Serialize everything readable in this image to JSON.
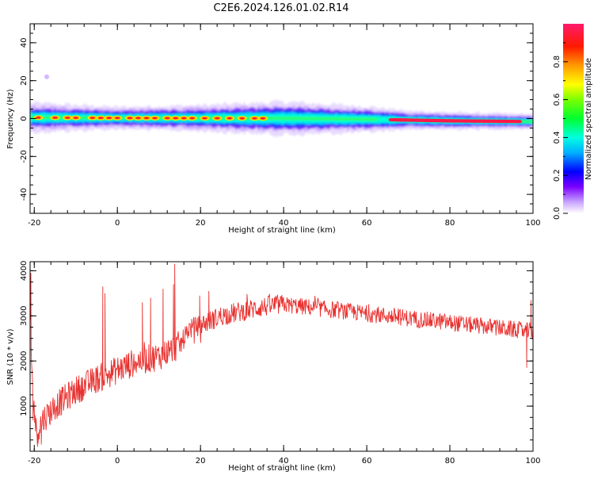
{
  "title": "C2E6.2024.126.01.02.R14",
  "colors": {
    "trace": "#e8312f",
    "axis": "#000000",
    "background": "#ffffff"
  },
  "chart_data": [
    {
      "type": "heatmap",
      "xlabel": "Height of straight line (km)",
      "ylabel": "Frequency (Hz)",
      "xlim": [
        -21,
        100
      ],
      "ylim": [
        -50,
        50
      ],
      "xticks": [
        "-20",
        "0",
        "20",
        "40",
        "60",
        "80",
        "100"
      ],
      "yticks": [
        "40",
        "20",
        "0",
        "-20",
        "-40"
      ],
      "colorbar": {
        "label": "Normalized spectral amplitude",
        "range": [
          0,
          1
        ],
        "ticks": [
          "0.0",
          "0.2",
          "0.4",
          "0.6",
          "0.8"
        ],
        "colormap": "rainbow"
      },
      "band": {
        "center_hz": [
          [
            -21,
            0.5
          ],
          [
            0,
            0.3
          ],
          [
            40,
            0.1
          ],
          [
            60,
            -0.4
          ],
          [
            80,
            -1.2
          ],
          [
            100,
            -1.6
          ]
        ],
        "halfwidth_hz": [
          [
            -21,
            4
          ],
          [
            0,
            3
          ],
          [
            20,
            3.5
          ],
          [
            40,
            4.5
          ],
          [
            60,
            3.5
          ],
          [
            70,
            2.5
          ],
          [
            100,
            2
          ]
        ],
        "hotspots_km": [
          -19,
          -15,
          -12,
          -10,
          -6,
          -4,
          -2,
          0,
          3,
          5,
          7,
          9,
          12,
          14,
          16,
          18,
          21,
          24,
          27,
          30,
          33,
          35
        ],
        "hot_segment_km": [
          [
            66,
            97
          ]
        ],
        "outlier": {
          "x": -17,
          "y": 22
        }
      }
    },
    {
      "type": "line",
      "xlabel": "Height of straight line (km)",
      "ylabel": "SNR (10 * v/v)",
      "xlim": [
        -21,
        100
      ],
      "ylim": [
        0,
        4200
      ],
      "xticks": [
        "-20",
        "0",
        "20",
        "40",
        "60",
        "80",
        "100"
      ],
      "yticks": [
        "4000",
        "3000",
        "2000",
        "1000"
      ],
      "series": [
        {
          "trend": [
            [
              -21,
              3300
            ],
            [
              -20.5,
              1500
            ],
            [
              -19.5,
              400
            ],
            [
              -18,
              700
            ],
            [
              -15,
              1000
            ],
            [
              -10,
              1350
            ],
            [
              -5,
              1600
            ],
            [
              0,
              1800
            ],
            [
              5,
              2000
            ],
            [
              10,
              2100
            ],
            [
              14,
              2300
            ],
            [
              15.5,
              2400
            ],
            [
              17,
              2700
            ],
            [
              20,
              2800
            ],
            [
              25,
              3000
            ],
            [
              30,
              3100
            ],
            [
              35,
              3200
            ],
            [
              40,
              3250
            ],
            [
              45,
              3200
            ],
            [
              50,
              3150
            ],
            [
              55,
              3100
            ],
            [
              60,
              3050
            ],
            [
              65,
              3000
            ],
            [
              70,
              2950
            ],
            [
              75,
              2900
            ],
            [
              80,
              2850
            ],
            [
              85,
              2800
            ],
            [
              90,
              2750
            ],
            [
              95,
              2700
            ],
            [
              100,
              2650
            ]
          ],
          "spikes": [
            [
              -20.8,
              3950
            ],
            [
              -19.2,
              100
            ],
            [
              -18.3,
              150
            ],
            [
              -3.5,
              3650
            ],
            [
              -3,
              3500
            ],
            [
              13.8,
              4150
            ],
            [
              13.5,
              3700
            ],
            [
              11,
              3600
            ],
            [
              6,
              3300
            ],
            [
              8,
              3400
            ],
            [
              19.8,
              3450
            ],
            [
              22,
              3550
            ],
            [
              98.5,
              1850
            ],
            [
              99.5,
              3350
            ]
          ]
        }
      ]
    }
  ]
}
